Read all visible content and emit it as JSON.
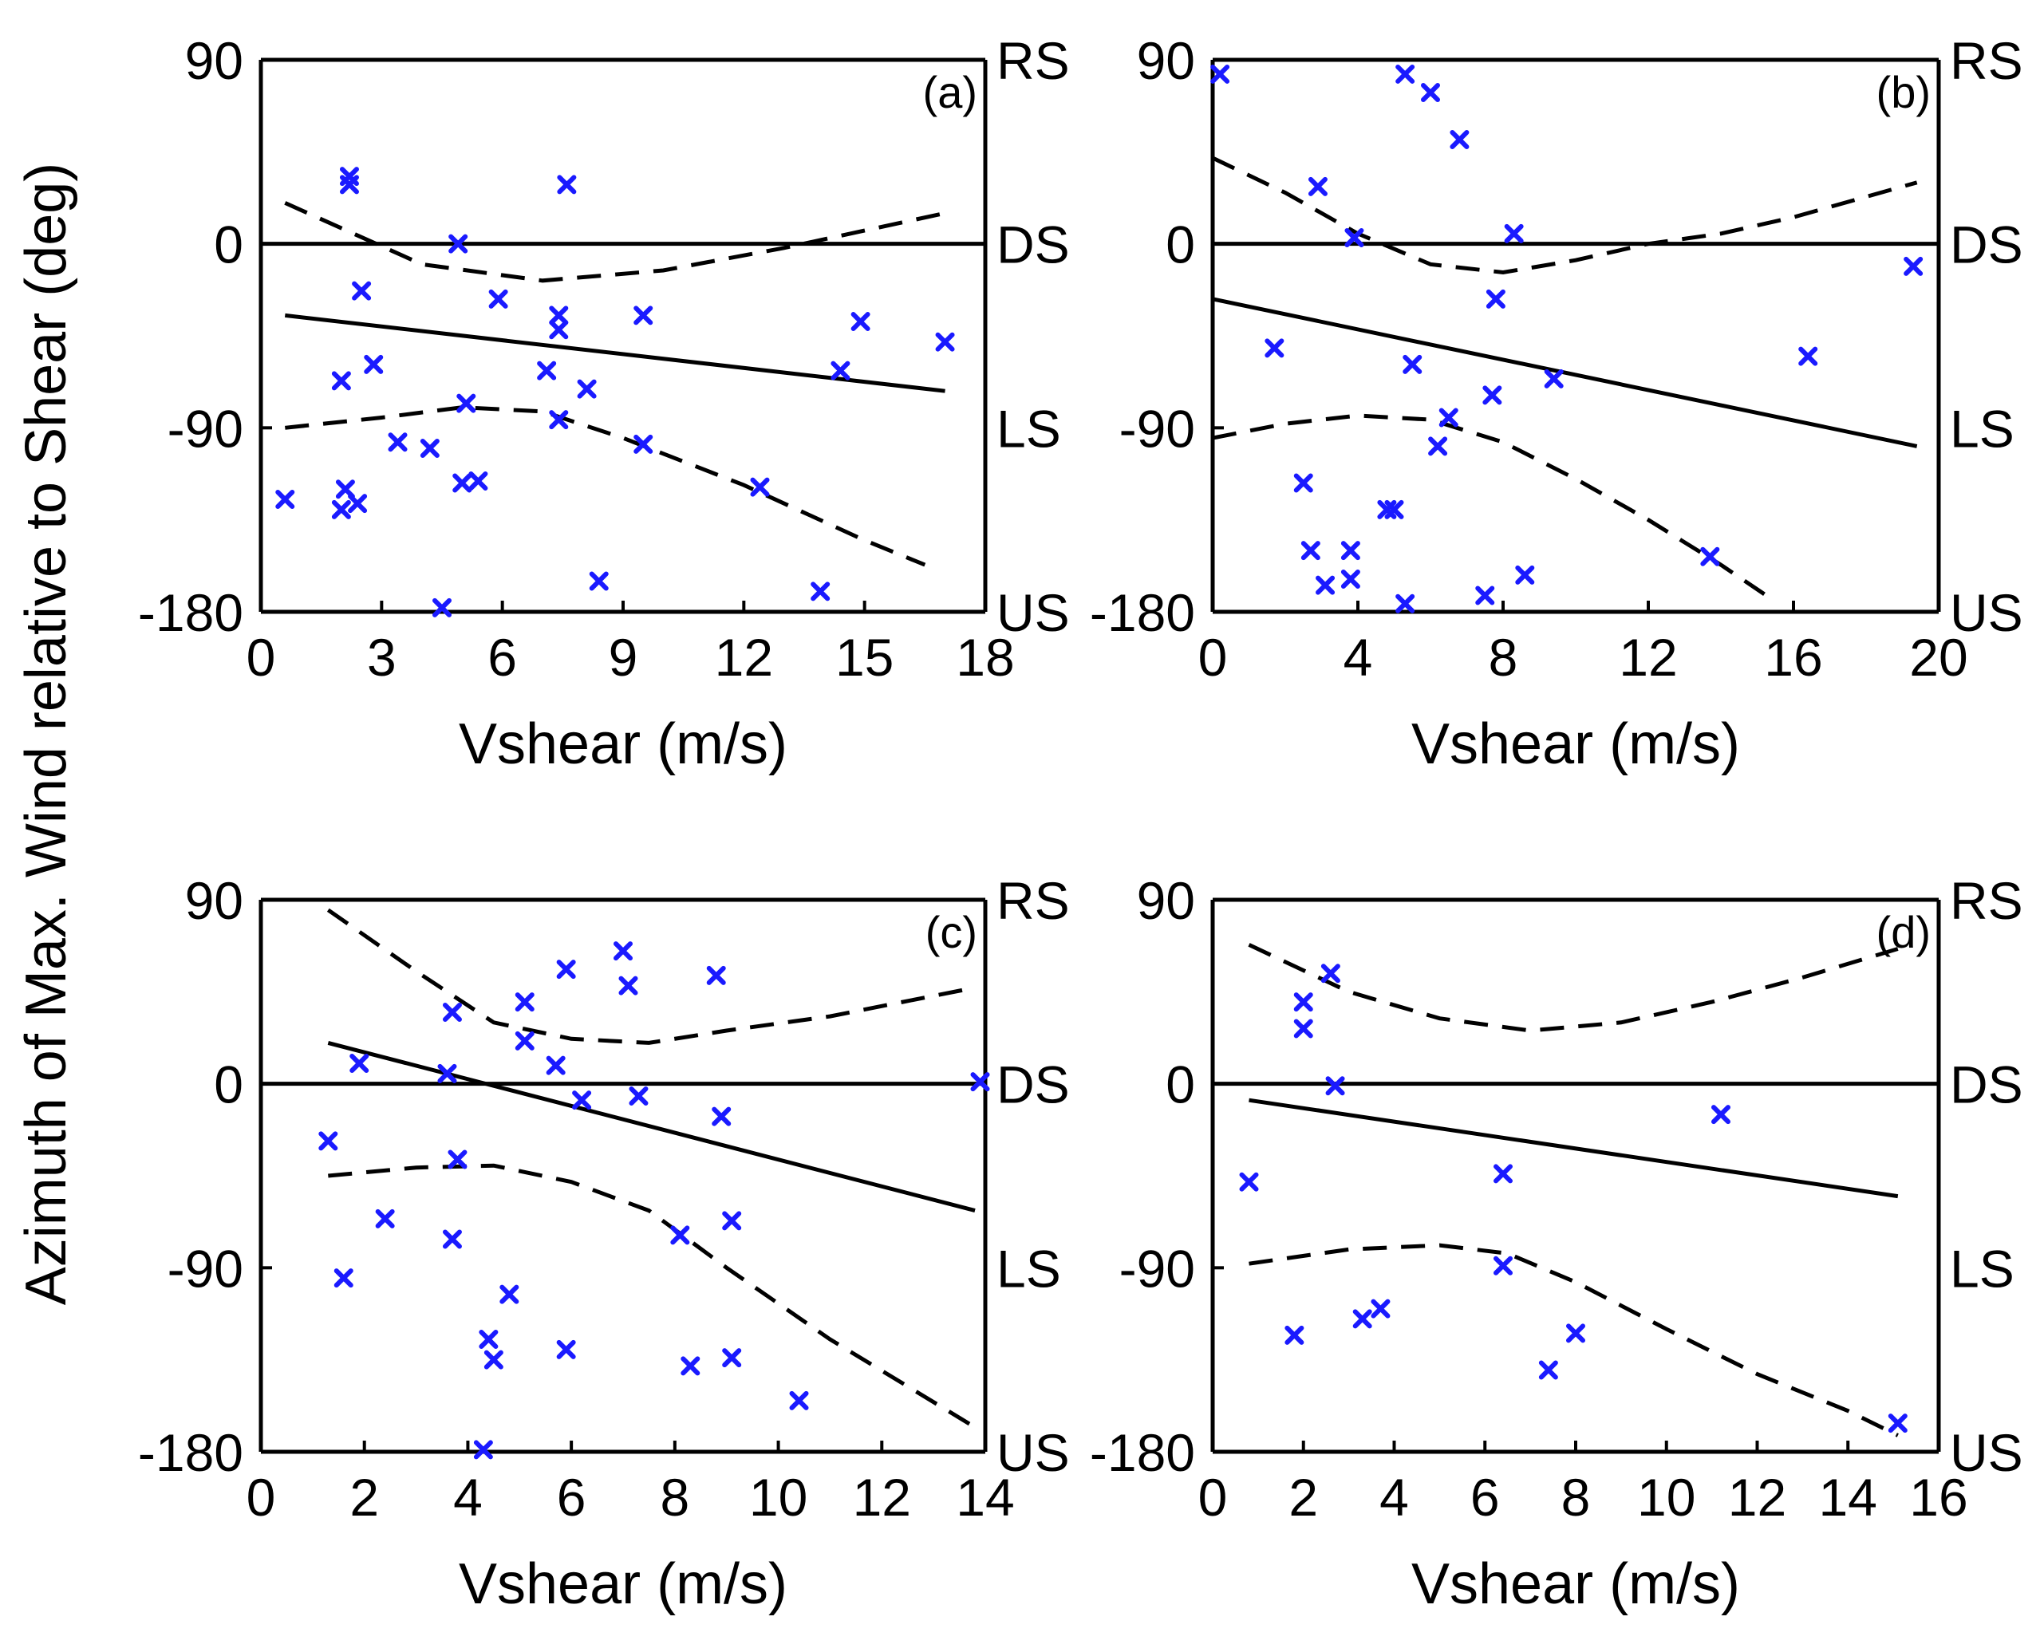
{
  "figure": {
    "ylabel": "Azimuth of Max. Wind relative to Shear (deg)"
  },
  "chart_data": [
    {
      "type": "scatter",
      "panel_label": "(a)",
      "xlabel": "Vshear (m/s)",
      "xlim": [
        0,
        18
      ],
      "xticks": [
        0,
        3,
        6,
        9,
        12,
        15,
        18
      ],
      "ylim": [
        -180,
        90
      ],
      "yticks": [
        90,
        0,
        -90,
        -180
      ],
      "right_labels": [
        {
          "y": 90,
          "text": "RS"
        },
        {
          "y": 0,
          "text": "DS"
        },
        {
          "y": -90,
          "text": "LS"
        },
        {
          "y": -180,
          "text": "US"
        }
      ],
      "points": [
        [
          0.6,
          -125
        ],
        [
          2.0,
          -130
        ],
        [
          2.1,
          -120
        ],
        [
          2.4,
          -127
        ],
        [
          2.0,
          -67
        ],
        [
          2.8,
          -59
        ],
        [
          2.2,
          33
        ],
        [
          2.2,
          29
        ],
        [
          2.5,
          -23
        ],
        [
          3.4,
          -97
        ],
        [
          4.2,
          -100
        ],
        [
          4.5,
          -178
        ],
        [
          5.0,
          -117
        ],
        [
          5.4,
          -116
        ],
        [
          4.9,
          0
        ],
        [
          5.1,
          -78
        ],
        [
          5.9,
          -27
        ],
        [
          7.1,
          -62
        ],
        [
          7.4,
          -35
        ],
        [
          7.4,
          -42
        ],
        [
          7.4,
          -86
        ],
        [
          7.6,
          29
        ],
        [
          8.1,
          -71
        ],
        [
          8.4,
          -165
        ],
        [
          9.5,
          -35
        ],
        [
          9.5,
          -98
        ],
        [
          12.4,
          -119
        ],
        [
          13.9,
          -170
        ],
        [
          14.4,
          -62
        ],
        [
          14.9,
          -38
        ],
        [
          17.0,
          -48
        ]
      ],
      "fit": [
        [
          0.6,
          -35
        ],
        [
          17.0,
          -72
        ]
      ],
      "upper_ci": [
        [
          0.6,
          20
        ],
        [
          4.0,
          -10
        ],
        [
          7.0,
          -18
        ],
        [
          10.0,
          -13
        ],
        [
          13.0,
          -2
        ],
        [
          17.0,
          15
        ]
      ],
      "lower_ci": [
        [
          0.6,
          -90
        ],
        [
          3.0,
          -85
        ],
        [
          5.0,
          -80
        ],
        [
          7.0,
          -82
        ],
        [
          9.0,
          -95
        ],
        [
          12.0,
          -118
        ],
        [
          15.0,
          -145
        ],
        [
          16.5,
          -157
        ]
      ]
    },
    {
      "type": "scatter",
      "panel_label": "(b)",
      "xlabel": "Vshear (m/s)",
      "xlim": [
        0,
        20
      ],
      "xticks": [
        0,
        4,
        8,
        12,
        16,
        20
      ],
      "ylim": [
        -180,
        90
      ],
      "yticks": [
        90,
        0,
        -90,
        -180
      ],
      "right_labels": [
        {
          "y": 90,
          "text": "RS"
        },
        {
          "y": 0,
          "text": "DS"
        },
        {
          "y": -90,
          "text": "LS"
        },
        {
          "y": -180,
          "text": "US"
        }
      ],
      "points": [
        [
          0.2,
          83
        ],
        [
          1.7,
          -51
        ],
        [
          2.5,
          -117
        ],
        [
          2.7,
          -150
        ],
        [
          3.1,
          -167
        ],
        [
          2.9,
          28
        ],
        [
          3.9,
          3
        ],
        [
          3.8,
          -150
        ],
        [
          3.8,
          -164
        ],
        [
          4.8,
          -130
        ],
        [
          5.0,
          -130
        ],
        [
          5.3,
          -176
        ],
        [
          5.5,
          -59
        ],
        [
          5.3,
          83
        ],
        [
          6.0,
          74
        ],
        [
          6.2,
          -99
        ],
        [
          6.5,
          -85
        ],
        [
          6.8,
          51
        ],
        [
          7.5,
          -172
        ],
        [
          7.8,
          -27
        ],
        [
          7.7,
          -74
        ],
        [
          8.3,
          5
        ],
        [
          8.6,
          -162
        ],
        [
          9.4,
          -66
        ],
        [
          13.7,
          -153
        ],
        [
          16.4,
          -55
        ],
        [
          19.3,
          -11
        ]
      ],
      "fit": [
        [
          0.0,
          -27
        ],
        [
          19.4,
          -99
        ]
      ],
      "upper_ci": [
        [
          0.0,
          42
        ],
        [
          2.0,
          25
        ],
        [
          4.0,
          5
        ],
        [
          6.0,
          -10
        ],
        [
          8.0,
          -14
        ],
        [
          10.0,
          -8
        ],
        [
          12.0,
          0
        ],
        [
          14.0,
          5
        ],
        [
          16.0,
          13
        ],
        [
          19.4,
          30
        ]
      ],
      "lower_ci": [
        [
          0.0,
          -95
        ],
        [
          2.0,
          -88
        ],
        [
          4.0,
          -84
        ],
        [
          6.0,
          -86
        ],
        [
          8.0,
          -97
        ],
        [
          10.0,
          -115
        ],
        [
          12.0,
          -135
        ],
        [
          14.0,
          -157
        ],
        [
          15.5,
          -175
        ]
      ]
    },
    {
      "type": "scatter",
      "panel_label": "(c)",
      "xlabel": "Vshear (m/s)",
      "xlim": [
        0,
        14
      ],
      "xticks": [
        0,
        2,
        4,
        6,
        8,
        10,
        12,
        14
      ],
      "ylim": [
        -180,
        90
      ],
      "yticks": [
        90,
        0,
        -90,
        -180
      ],
      "right_labels": [
        {
          "y": 90,
          "text": "RS"
        },
        {
          "y": 0,
          "text": "DS"
        },
        {
          "y": -90,
          "text": "LS"
        },
        {
          "y": -180,
          "text": "US"
        }
      ],
      "points": [
        [
          1.3,
          -28
        ],
        [
          1.6,
          -95
        ],
        [
          1.9,
          10
        ],
        [
          2.4,
          -66
        ],
        [
          3.6,
          5
        ],
        [
          3.7,
          35
        ],
        [
          3.7,
          -76
        ],
        [
          3.8,
          -37
        ],
        [
          4.3,
          -179
        ],
        [
          4.4,
          -125
        ],
        [
          4.5,
          -135
        ],
        [
          4.8,
          -103
        ],
        [
          5.1,
          40
        ],
        [
          5.1,
          21
        ],
        [
          5.7,
          9
        ],
        [
          5.9,
          -130
        ],
        [
          5.9,
          56
        ],
        [
          6.2,
          -8
        ],
        [
          7.0,
          65
        ],
        [
          7.1,
          48
        ],
        [
          7.3,
          -6
        ],
        [
          8.1,
          -74
        ],
        [
          8.3,
          -138
        ],
        [
          8.8,
          53
        ],
        [
          8.9,
          -16
        ],
        [
          9.1,
          -67
        ],
        [
          9.1,
          -134
        ],
        [
          10.4,
          -155
        ],
        [
          13.9,
          1
        ]
      ],
      "fit": [
        [
          1.3,
          20
        ],
        [
          13.8,
          -62
        ]
      ],
      "upper_ci": [
        [
          1.3,
          85
        ],
        [
          3.0,
          55
        ],
        [
          4.5,
          30
        ],
        [
          6.0,
          22
        ],
        [
          7.5,
          20
        ],
        [
          9.0,
          26
        ],
        [
          11.0,
          33
        ],
        [
          13.8,
          47
        ]
      ],
      "lower_ci": [
        [
          1.3,
          -45
        ],
        [
          3.0,
          -41
        ],
        [
          4.5,
          -40
        ],
        [
          6.0,
          -48
        ],
        [
          7.5,
          -62
        ],
        [
          9.0,
          -90
        ],
        [
          11.0,
          -125
        ],
        [
          13.8,
          -168
        ]
      ]
    },
    {
      "type": "scatter",
      "panel_label": "(d)",
      "xlabel": "Vshear (m/s)",
      "xlim": [
        0,
        16
      ],
      "xticks": [
        0,
        2,
        4,
        6,
        8,
        10,
        12,
        14,
        16
      ],
      "ylim": [
        -180,
        90
      ],
      "yticks": [
        90,
        0,
        -90,
        -180
      ],
      "right_labels": [
        {
          "y": 90,
          "text": "RS"
        },
        {
          "y": 0,
          "text": "DS"
        },
        {
          "y": -90,
          "text": "LS"
        },
        {
          "y": -180,
          "text": "US"
        }
      ],
      "points": [
        [
          0.8,
          -48
        ],
        [
          1.8,
          -123
        ],
        [
          2.0,
          40
        ],
        [
          2.0,
          27
        ],
        [
          2.6,
          54
        ],
        [
          2.7,
          -1
        ],
        [
          3.3,
          -115
        ],
        [
          3.7,
          -110
        ],
        [
          6.4,
          -89
        ],
        [
          6.4,
          -44
        ],
        [
          7.4,
          -140
        ],
        [
          8.0,
          -122
        ],
        [
          11.2,
          -15
        ],
        [
          15.1,
          -166
        ]
      ],
      "fit": [
        [
          0.8,
          -8
        ],
        [
          15.1,
          -55
        ]
      ],
      "upper_ci": [
        [
          0.8,
          68
        ],
        [
          3.0,
          45
        ],
        [
          5.0,
          32
        ],
        [
          7.0,
          26
        ],
        [
          9.0,
          30
        ],
        [
          11.0,
          40
        ],
        [
          13.0,
          52
        ],
        [
          15.1,
          66
        ]
      ],
      "lower_ci": [
        [
          0.8,
          -88
        ],
        [
          3.0,
          -81
        ],
        [
          5.0,
          -79
        ],
        [
          6.5,
          -83
        ],
        [
          8.0,
          -97
        ],
        [
          10.0,
          -120
        ],
        [
          12.0,
          -142
        ],
        [
          14.0,
          -160
        ],
        [
          15.1,
          -172
        ]
      ]
    }
  ]
}
